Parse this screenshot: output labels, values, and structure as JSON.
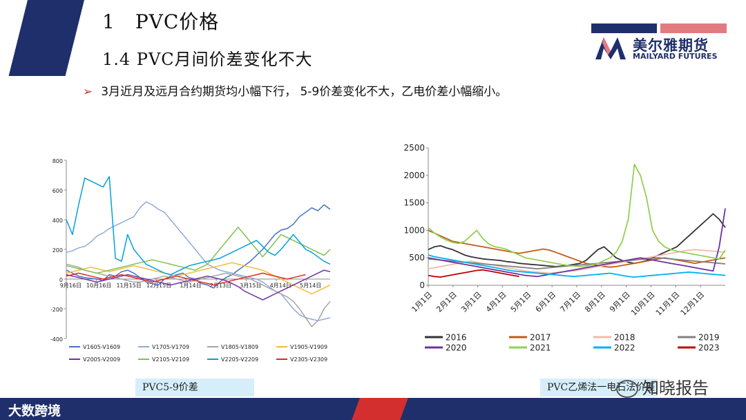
{
  "header": {
    "title": "1　PVC价格",
    "subtitle": "1.4 PVC月间价差变化不大",
    "bullet_arrow": "➢",
    "bullet": "3月近月及远月合约期货均小幅下行，  5-9价差变化不大，乙电价差小幅缩小。"
  },
  "logo": {
    "name": "美尔雅期货",
    "name_en": "MAILYARD FUTURES",
    "colors": {
      "navy": "#1f2f6b",
      "pink": "#e27b80"
    }
  },
  "footer": {
    "brand": "大数跨境",
    "watermark": "知晓报告"
  },
  "chart_data": [
    {
      "type": "line",
      "caption": "PVC5-9价差",
      "x_ticks": [
        "9月16日",
        "10月16日",
        "11月15日",
        "12月15日",
        "1月14日",
        "2月13日",
        "3月15日",
        "4月14日",
        "5月14日"
      ],
      "ylim": [
        -400,
        800
      ],
      "y_ticks": [
        -400,
        -200,
        0,
        200,
        400,
        600,
        800
      ],
      "legend_position": "bottom",
      "series": [
        {
          "name": "V1605-V1609",
          "color": "#4472c4",
          "values": [
            60,
            40,
            20,
            10,
            5,
            0,
            -10,
            30,
            20,
            50,
            60,
            40,
            10,
            -20,
            -30,
            -40,
            0,
            20,
            30,
            40,
            10,
            0,
            -30,
            -40,
            -60,
            -20,
            10,
            30,
            60,
            90,
            120,
            160,
            200,
            250,
            300,
            330,
            340,
            370,
            420,
            450,
            480,
            460,
            500,
            470
          ]
        },
        {
          "name": "V1705-V1709",
          "color": "#8faadc",
          "values": [
            180,
            190,
            210,
            220,
            250,
            290,
            310,
            340,
            360,
            380,
            400,
            420,
            480,
            520,
            500,
            470,
            450,
            400,
            350,
            300,
            250,
            200,
            150,
            100,
            80,
            60,
            50,
            40,
            30,
            20,
            10,
            0,
            -20,
            -50,
            -80,
            -100,
            -150,
            -200,
            -240,
            -260,
            -270,
            -280,
            -270,
            -260
          ]
        },
        {
          "name": "V1805-V1809",
          "color": "#a5a5a5",
          "values": [
            100,
            90,
            80,
            60,
            50,
            40,
            30,
            20,
            10,
            0,
            -10,
            -20,
            -20,
            -10,
            0,
            10,
            20,
            10,
            0,
            -10,
            -20,
            -10,
            0,
            10,
            20,
            30,
            40,
            30,
            20,
            10,
            0,
            -20,
            -40,
            -60,
            -80,
            -100,
            -120,
            -150,
            -200,
            -260,
            -320,
            -280,
            -200,
            -150
          ]
        },
        {
          "name": "V1905-V1909",
          "color": "#f5b93a",
          "values": [
            40,
            50,
            60,
            70,
            80,
            70,
            60,
            50,
            60,
            70,
            80,
            90,
            80,
            70,
            60,
            50,
            40,
            30,
            20,
            30,
            40,
            50,
            60,
            70,
            80,
            90,
            100,
            110,
            100,
            90,
            80,
            70,
            60,
            40,
            20,
            0,
            -20,
            -40,
            -60,
            -80,
            -100,
            -80,
            -60,
            -40
          ]
        },
        {
          "name": "V2005-V2009",
          "color": "#7030a0",
          "values": [
            30,
            20,
            10,
            0,
            -10,
            -20,
            -10,
            0,
            10,
            20,
            30,
            20,
            10,
            0,
            -10,
            -20,
            -30,
            -40,
            -30,
            -20,
            -10,
            0,
            10,
            20,
            10,
            0,
            -10,
            -30,
            -50,
            -80,
            -100,
            -120,
            -140,
            -120,
            -100,
            -80,
            -60,
            -40,
            -20,
            0,
            20,
            40,
            60,
            50
          ]
        },
        {
          "name": "V2105-V2109",
          "color": "#7dc24b",
          "values": [
            90,
            80,
            70,
            60,
            50,
            40,
            50,
            60,
            70,
            80,
            90,
            100,
            110,
            120,
            130,
            120,
            110,
            100,
            90,
            80,
            70,
            60,
            80,
            100,
            150,
            200,
            250,
            300,
            350,
            300,
            250,
            200,
            150,
            200,
            250,
            300,
            280,
            260,
            240,
            220,
            200,
            180,
            160,
            200
          ]
        },
        {
          "name": "V2205-V2209",
          "color": "#00a0dc",
          "values": [
            400,
            300,
            500,
            680,
            660,
            640,
            620,
            690,
            140,
            120,
            300,
            200,
            150,
            100,
            80,
            60,
            40,
            30,
            50,
            70,
            90,
            100,
            110,
            120,
            130,
            140,
            160,
            180,
            200,
            220,
            240,
            260,
            220,
            180,
            160,
            200,
            250,
            300,
            250,
            200,
            180,
            150,
            120,
            100
          ]
        },
        {
          "name": "V2305-V2309",
          "color": "#e32620",
          "values": [
            20,
            30,
            40,
            30,
            20,
            10,
            0,
            10,
            20,
            30,
            20,
            10,
            0,
            -10,
            -20,
            -10,
            0,
            10,
            20,
            10,
            0,
            -10,
            -20,
            -30,
            -40,
            -30,
            -20,
            -10,
            0,
            10,
            20,
            30,
            40,
            30,
            20,
            10,
            0,
            10,
            20,
            30
          ]
        }
      ]
    },
    {
      "type": "line",
      "caption": "PVC乙烯法一电石法价差",
      "x_ticks": [
        "1月1日",
        "2月1日",
        "3月1日",
        "4月1日",
        "5月1日",
        "6月1日",
        "7月1日",
        "8月1日",
        "9月1日",
        "10月1日",
        "11月1日",
        "12月1日"
      ],
      "ylim": [
        0,
        2500
      ],
      "y_ticks": [
        0,
        500,
        1000,
        1500,
        2000,
        2500
      ],
      "legend_position": "bottom",
      "series": [
        {
          "name": "2016",
          "color": "#333333",
          "values": [
            650,
            700,
            720,
            680,
            650,
            600,
            550,
            520,
            500,
            480,
            470,
            460,
            450,
            430,
            420,
            400,
            390,
            380,
            370,
            360,
            350,
            340,
            350,
            360,
            380,
            400,
            450,
            550,
            650,
            700,
            600,
            500,
            450,
            420,
            400,
            420,
            450,
            500,
            550,
            600,
            650,
            700,
            800,
            900,
            1000,
            1100,
            1200,
            1300,
            1200,
            1050
          ]
        },
        {
          "name": "2017",
          "color": "#c55a11",
          "values": [
            1000,
            950,
            900,
            850,
            800,
            780,
            760,
            740,
            720,
            700,
            680,
            660,
            640,
            620,
            600,
            580,
            600,
            620,
            640,
            660,
            640,
            600,
            560,
            520,
            480,
            440,
            400,
            380,
            360,
            340,
            330,
            340,
            360,
            380,
            400,
            420,
            440,
            460,
            480,
            500,
            480,
            460,
            440,
            420,
            400,
            420,
            440,
            460,
            480,
            500
          ]
        },
        {
          "name": "2018",
          "color": "#f4b9a8",
          "values": [
            300,
            320,
            340,
            360,
            380,
            400,
            420,
            440,
            420,
            400,
            380,
            360,
            340,
            320,
            300,
            280,
            260,
            250,
            240,
            230,
            220,
            230,
            240,
            250,
            260,
            280,
            300,
            320,
            340,
            360,
            380,
            400,
            420,
            440,
            460,
            480,
            500,
            520,
            540,
            560,
            580,
            600,
            620,
            640,
            650,
            640,
            630,
            620,
            610,
            600
          ]
        },
        {
          "name": "2019",
          "color": "#808080",
          "values": [
            480,
            470,
            460,
            450,
            440,
            430,
            420,
            410,
            400,
            390,
            380,
            370,
            360,
            350,
            340,
            330,
            320,
            310,
            300,
            310,
            320,
            330,
            340,
            350,
            360,
            370,
            380,
            390,
            400,
            410,
            420,
            430,
            440,
            450,
            460,
            470,
            480,
            490,
            500,
            490,
            480,
            470,
            460,
            450,
            440,
            430,
            420,
            410,
            400,
            390
          ]
        },
        {
          "name": "2020",
          "color": "#7030a0",
          "values": [
            500,
            480,
            460,
            440,
            420,
            400,
            380,
            360,
            340,
            320,
            300,
            280,
            260,
            240,
            220,
            200,
            180,
            170,
            160,
            180,
            200,
            220,
            240,
            260,
            280,
            300,
            320,
            340,
            360,
            380,
            400,
            420,
            440,
            460,
            480,
            500,
            480,
            460,
            440,
            420,
            400,
            380,
            360,
            340,
            320,
            300,
            280,
            260,
            700,
            1400
          ]
        },
        {
          "name": "2021",
          "color": "#92d050",
          "values": [
            1050,
            950,
            880,
            820,
            780,
            760,
            800,
            900,
            1000,
            850,
            750,
            700,
            680,
            650,
            600,
            550,
            500,
            480,
            460,
            440,
            420,
            400,
            380,
            360,
            350,
            340,
            350,
            370,
            400,
            450,
            500,
            600,
            800,
            1200,
            2200,
            2000,
            1600,
            1000,
            800,
            700,
            650,
            620,
            600,
            580,
            560,
            540,
            520,
            500,
            480,
            640
          ]
        },
        {
          "name": "2022",
          "color": "#00b0f0",
          "values": [
            550,
            520,
            500,
            480,
            460,
            440,
            420,
            400,
            380,
            360,
            340,
            320,
            300,
            280,
            260,
            250,
            240,
            230,
            220,
            210,
            200,
            190,
            180,
            170,
            160,
            170,
            180,
            190,
            200,
            210,
            220,
            200,
            180,
            160,
            150,
            160,
            170,
            180,
            190,
            200,
            210,
            220,
            230,
            240,
            230,
            220,
            210,
            200,
            190,
            180
          ]
        },
        {
          "name": "2023",
          "color": "#c00000",
          "values": [
            180,
            160,
            150,
            170,
            190,
            210,
            230,
            250,
            270,
            280,
            260,
            240,
            220,
            200,
            180,
            160
          ]
        }
      ]
    }
  ]
}
